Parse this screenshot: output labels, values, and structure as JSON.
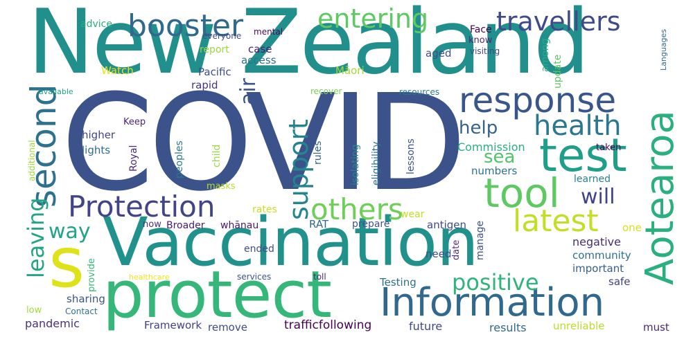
{
  "words": [
    {
      "text": "New Zealand",
      "color": "#21908d"
    },
    {
      "text": "COVID",
      "color": "#3b528b"
    },
    {
      "text": "Vaccination",
      "color": "#21918c"
    },
    {
      "text": "protect",
      "color": "#35b779"
    },
    {
      "text": "Information",
      "color": "#31688e"
    },
    {
      "text": "test",
      "color": "#1f9e89"
    },
    {
      "text": "s",
      "color": "#dde318"
    },
    {
      "text": "response",
      "color": "#39568c"
    },
    {
      "text": "health",
      "color": "#2a788e"
    },
    {
      "text": "tool",
      "color": "#5ec962"
    },
    {
      "text": "Aotearoa",
      "color": "#2ab07f"
    },
    {
      "text": "booster",
      "color": "#31688e"
    },
    {
      "text": "travellers",
      "color": "#3e4a89"
    },
    {
      "text": "entering",
      "color": "#5ec962"
    },
    {
      "text": "Protection",
      "color": "#414487"
    },
    {
      "text": "second",
      "color": "#2c728e"
    },
    {
      "text": "others",
      "color": "#6ece58"
    },
    {
      "text": "latest",
      "color": "#c2df23"
    },
    {
      "text": "support",
      "color": "#25858e"
    },
    {
      "text": "positive",
      "color": "#2fb47c"
    },
    {
      "text": "leaving",
      "color": "#21a685"
    },
    {
      "text": "air",
      "color": "#3b528b"
    },
    {
      "text": "help",
      "color": "#33638d"
    },
    {
      "text": "will",
      "color": "#404387"
    },
    {
      "text": "sea",
      "color": "#52c569"
    },
    {
      "text": "way",
      "color": "#20a386"
    },
    {
      "text": "pandemic",
      "color": "#46327e"
    },
    {
      "text": "sharing",
      "color": "#3b528b"
    },
    {
      "text": "Framework",
      "color": "#433e85"
    },
    {
      "text": "trafficfollowing",
      "color": "#440154"
    },
    {
      "text": "future",
      "color": "#3e4989"
    },
    {
      "text": "results",
      "color": "#31688e"
    },
    {
      "text": "unreliable",
      "color": "#b8de29"
    },
    {
      "text": "must",
      "color": "#482878"
    },
    {
      "text": "remove",
      "color": "#3e4989"
    },
    {
      "text": "safe",
      "color": "#424086"
    },
    {
      "text": "important",
      "color": "#355f8d"
    },
    {
      "text": "community",
      "color": "#2d708e"
    },
    {
      "text": "negative",
      "color": "#472c7a"
    },
    {
      "text": "one",
      "color": "#d2e21b"
    },
    {
      "text": "antigen",
      "color": "#3e4989"
    },
    {
      "text": "numbers",
      "color": "#2c728e"
    },
    {
      "text": "learned",
      "color": "#26828e"
    },
    {
      "text": "Commission",
      "color": "#29af7f"
    },
    {
      "text": "higher",
      "color": "#414487"
    },
    {
      "text": "lights",
      "color": "#2f6b8e"
    },
    {
      "text": "Keep",
      "color": "#482475"
    },
    {
      "text": "Royal",
      "color": "#482878"
    },
    {
      "text": "rules",
      "color": "#32648e"
    },
    {
      "text": "rapid",
      "color": "#46337f"
    },
    {
      "text": "access",
      "color": "#2d708e"
    },
    {
      "text": "Pacific",
      "color": "#3d4d8a"
    },
    {
      "text": "Watch",
      "color": "#e5e419"
    },
    {
      "text": "report",
      "color": "#9bd93c"
    },
    {
      "text": "case",
      "color": "#482173"
    },
    {
      "text": "Māori",
      "color": "#a0da39"
    },
    {
      "text": "aged",
      "color": "#3c4f8a"
    },
    {
      "text": "know",
      "color": "#482878"
    },
    {
      "text": "Face",
      "color": "#440154"
    },
    {
      "text": "visiting",
      "color": "#3e4989"
    },
    {
      "text": "advice",
      "color": "#29af7f"
    },
    {
      "text": "everyone",
      "color": "#3f4889"
    },
    {
      "text": "mental",
      "color": "#46085c"
    },
    {
      "text": "available",
      "color": "#20a486"
    },
    {
      "text": "recover",
      "color": "#7ad151"
    },
    {
      "text": "resources",
      "color": "#2a788e"
    },
    {
      "text": "additional",
      "color": "#9dd93b"
    },
    {
      "text": "provide",
      "color": "#35b779"
    },
    {
      "text": "low",
      "color": "#a2da37"
    },
    {
      "text": "Contact",
      "color": "#2d708e"
    },
    {
      "text": "masks",
      "color": "#b5de2b"
    },
    {
      "text": "rates",
      "color": "#c8e020"
    },
    {
      "text": "now",
      "color": "#46337f"
    },
    {
      "text": "Broader",
      "color": "#481a6c"
    },
    {
      "text": "whānau",
      "color": "#48186a"
    },
    {
      "text": "RAT",
      "color": "#31688e"
    },
    {
      "text": "prepare",
      "color": "#3b528b"
    },
    {
      "text": "ended",
      "color": "#3e4c8a"
    },
    {
      "text": "need",
      "color": "#3d4d8a"
    },
    {
      "text": "wear",
      "color": "#c0df25"
    },
    {
      "text": "Testing",
      "color": "#2e6f8e"
    },
    {
      "text": "healthcare",
      "color": "#f1e51d"
    },
    {
      "text": "services",
      "color": "#3b528b"
    },
    {
      "text": "toll",
      "color": "#472d7b"
    },
    {
      "text": "isolating",
      "color": "#23898e"
    },
    {
      "text": "eligibility",
      "color": "#2c738e"
    },
    {
      "text": "lessons",
      "color": "#3b528b"
    },
    {
      "text": "peoples",
      "color": "#2a788e"
    },
    {
      "text": "child",
      "color": "#97d83f"
    },
    {
      "text": "among",
      "color": "#26ad81"
    },
    {
      "text": "update",
      "color": "#5cc863"
    },
    {
      "text": "taken",
      "color": "#440154"
    },
    {
      "text": "date",
      "color": "#4f2d7f"
    },
    {
      "text": "manage",
      "color": "#3c4f8a"
    },
    {
      "text": "Languages",
      "color": "#31688e"
    }
  ]
}
